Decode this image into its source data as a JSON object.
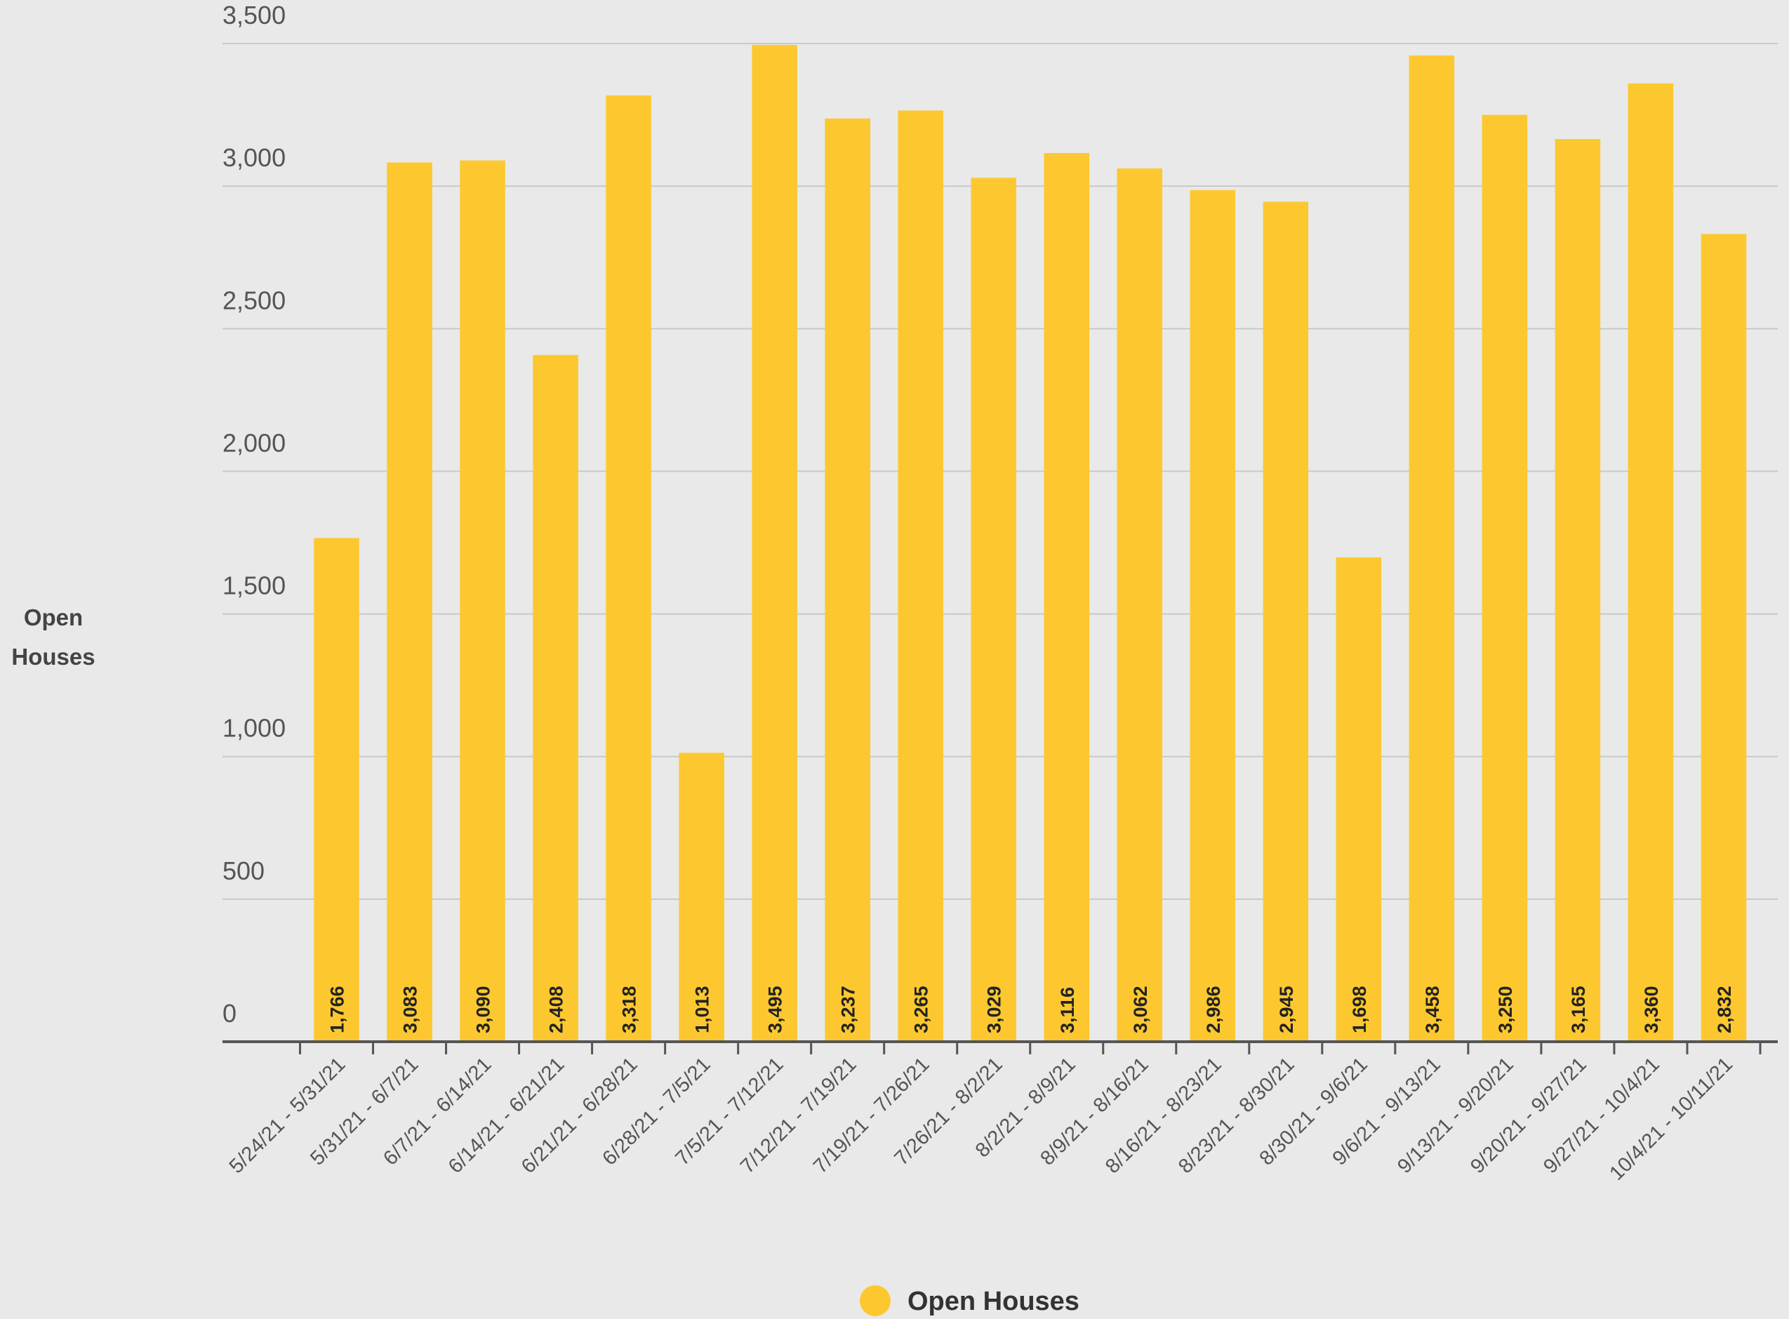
{
  "chart_data": {
    "type": "bar",
    "y_label": "Open Houses",
    "categories": [
      "5/24/21 - 5/31/21",
      "5/31/21 - 6/7/21",
      "6/7/21 - 6/14/21",
      "6/14/21 - 6/21/21",
      "6/21/21 - 6/28/21",
      "6/28/21 - 7/5/21",
      "7/5/21 - 7/12/21",
      "7/12/21 - 7/19/21",
      "7/19/21 - 7/26/21",
      "7/26/21 - 8/2/21",
      "8/2/21 - 8/9/21",
      "8/9/21 - 8/16/21",
      "8/16/21 - 8/23/21",
      "8/23/21 - 8/30/21",
      "8/30/21 - 9/6/21",
      "9/6/21 - 9/13/21",
      "9/13/21 - 9/20/21",
      "9/20/21 - 9/27/21",
      "9/27/21 - 10/4/21",
      "10/4/21 - 10/11/21"
    ],
    "series": [
      {
        "name": "Open Houses",
        "color": "#fdc82f",
        "values": [
          1766,
          3083,
          3090,
          2408,
          3318,
          1013,
          3495,
          3237,
          3265,
          3029,
          3116,
          3062,
          2986,
          2945,
          1698,
          3458,
          3250,
          3165,
          3360,
          2832
        ],
        "value_labels": [
          "1,766",
          "3,083",
          "3,090",
          "2,408",
          "3,318",
          "1,013",
          "3,495",
          "3,237",
          "3,265",
          "3,029",
          "3,116",
          "3,062",
          "2,986",
          "2,945",
          "1,698",
          "3,458",
          "3,250",
          "3,165",
          "3,360",
          "2,832"
        ]
      }
    ],
    "ylim": [
      0,
      3500
    ],
    "yticks": [
      0,
      500,
      {
        "value": 1000,
        "label": "1,000"
      },
      {
        "value": 1500,
        "label": "1,500"
      },
      {
        "value": 2000,
        "label": "2,000"
      },
      {
        "value": 2500,
        "label": "2,500"
      },
      {
        "value": 3000,
        "label": "3,000"
      },
      {
        "value": 3500,
        "label": "3,500"
      }
    ],
    "grid": true
  }
}
